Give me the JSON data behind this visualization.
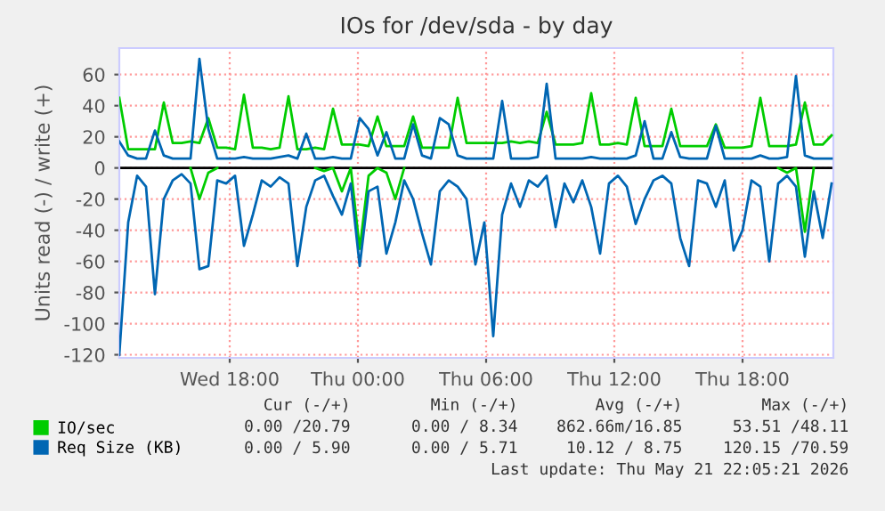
{
  "chart_data": {
    "type": "line",
    "title": "IOs for /dev/sda - by day",
    "ylabel": "Units read (-) / write (+)",
    "x": [
      "2026-05-20T12:50",
      "2026-05-20T13:15",
      "2026-05-20T13:40",
      "2026-05-20T14:05",
      "2026-05-20T14:30",
      "2026-05-20T14:55",
      "2026-05-20T15:20",
      "2026-05-20T15:45",
      "2026-05-20T16:10",
      "2026-05-20T16:35",
      "2026-05-20T17:00",
      "2026-05-20T17:25",
      "2026-05-20T17:50",
      "2026-05-20T18:15",
      "2026-05-20T18:40",
      "2026-05-20T19:05",
      "2026-05-20T19:30",
      "2026-05-20T19:55",
      "2026-05-20T20:20",
      "2026-05-20T20:45",
      "2026-05-20T21:10",
      "2026-05-20T21:35",
      "2026-05-20T22:00",
      "2026-05-20T22:25",
      "2026-05-20T22:50",
      "2026-05-20T23:15",
      "2026-05-20T23:40",
      "2026-05-21T00:05",
      "2026-05-21T00:30",
      "2026-05-21T00:55",
      "2026-05-21T01:20",
      "2026-05-21T01:45",
      "2026-05-21T02:10",
      "2026-05-21T02:35",
      "2026-05-21T03:00",
      "2026-05-21T03:25",
      "2026-05-21T03:50",
      "2026-05-21T04:15",
      "2026-05-21T04:40",
      "2026-05-21T05:05",
      "2026-05-21T05:30",
      "2026-05-21T05:55",
      "2026-05-21T06:20",
      "2026-05-21T06:45",
      "2026-05-21T07:10",
      "2026-05-21T07:35",
      "2026-05-21T08:00",
      "2026-05-21T08:25",
      "2026-05-21T08:50",
      "2026-05-21T09:15",
      "2026-05-21T09:40",
      "2026-05-21T10:05",
      "2026-05-21T10:30",
      "2026-05-21T10:55",
      "2026-05-21T11:20",
      "2026-05-21T11:45",
      "2026-05-21T12:10",
      "2026-05-21T12:35",
      "2026-05-21T13:00",
      "2026-05-21T13:25",
      "2026-05-21T13:50",
      "2026-05-21T14:15",
      "2026-05-21T14:40",
      "2026-05-21T15:05",
      "2026-05-21T15:30",
      "2026-05-21T15:55",
      "2026-05-21T16:20",
      "2026-05-21T16:45",
      "2026-05-21T17:10",
      "2026-05-21T17:35",
      "2026-05-21T18:00",
      "2026-05-21T18:25",
      "2026-05-21T18:50",
      "2026-05-21T19:15",
      "2026-05-21T19:40",
      "2026-05-21T20:05",
      "2026-05-21T20:30",
      "2026-05-21T20:55",
      "2026-05-21T21:20",
      "2026-05-21T21:45",
      "2026-05-21T22:10"
    ],
    "series": [
      {
        "name": "IO/sec",
        "color": "#00cc00",
        "values": [
          45,
          12,
          12,
          12,
          12,
          42,
          16,
          16,
          17,
          16,
          32,
          13,
          13,
          12,
          47,
          13,
          13,
          12,
          13,
          46,
          12,
          12,
          13,
          12,
          38,
          15,
          15,
          15,
          14,
          33,
          14,
          14,
          14,
          33,
          13,
          13,
          13,
          13,
          45,
          16,
          16,
          16,
          16,
          16,
          17,
          16,
          17,
          16,
          36,
          15,
          15,
          15,
          16,
          48,
          15,
          15,
          16,
          15,
          45,
          14,
          14,
          14,
          38,
          14,
          14,
          14,
          14,
          28,
          13,
          13,
          13,
          14,
          45,
          14,
          14,
          14,
          15,
          42,
          15,
          15,
          21
        ]
      },
      {
        "color": "#00cc00",
        "values": [
          null,
          null,
          null,
          null,
          null,
          null,
          null,
          null,
          0,
          -20,
          -3,
          0,
          null,
          null,
          null,
          null,
          null,
          null,
          null,
          null,
          null,
          null,
          0,
          -2,
          0,
          -15,
          0,
          -52,
          -5,
          0,
          -3,
          -20,
          0,
          null,
          null,
          null,
          null,
          null,
          null,
          null,
          null,
          null,
          null,
          null,
          null,
          null,
          null,
          null,
          null,
          null,
          null,
          null,
          null,
          null,
          null,
          null,
          null,
          null,
          null,
          null,
          null,
          null,
          null,
          null,
          null,
          null,
          null,
          null,
          null,
          null,
          null,
          null,
          null,
          null,
          0,
          -3,
          0,
          -41,
          0,
          null,
          null
        ]
      },
      {
        "name": "Req Size (KB)",
        "color": "#0066b3",
        "values": [
          17,
          8,
          6,
          6,
          24,
          8,
          6,
          6,
          6,
          70,
          25,
          6,
          6,
          6,
          7,
          6,
          6,
          6,
          7,
          8,
          6,
          22,
          6,
          6,
          7,
          6,
          6,
          32,
          25,
          8,
          23,
          6,
          6,
          28,
          8,
          6,
          32,
          28,
          8,
          6,
          6,
          6,
          6,
          43,
          6,
          6,
          6,
          7,
          54,
          6,
          6,
          6,
          6,
          7,
          6,
          6,
          6,
          6,
          8,
          30,
          6,
          6,
          23,
          7,
          6,
          6,
          6,
          27,
          6,
          6,
          6,
          6,
          8,
          6,
          6,
          7,
          59,
          8,
          6,
          6,
          6
        ]
      },
      {
        "color": "#0066b3",
        "values": [
          -120,
          -35,
          -5,
          -12,
          -81,
          -20,
          -8,
          -4,
          -10,
          -65,
          -63,
          -8,
          -10,
          -5,
          -50,
          -30,
          -8,
          -12,
          -6,
          -10,
          -63,
          -25,
          -8,
          -5,
          -18,
          -30,
          -10,
          -63,
          -15,
          -12,
          -55,
          -35,
          -8,
          -20,
          -42,
          -62,
          -15,
          -8,
          -12,
          -20,
          -62,
          -35,
          -108,
          -30,
          -10,
          -25,
          -8,
          -12,
          -5,
          -38,
          -10,
          -22,
          -8,
          -25,
          -55,
          -10,
          -5,
          -12,
          -36,
          -20,
          -8,
          -5,
          -10,
          -45,
          -63,
          -8,
          -10,
          -25,
          -8,
          -53,
          -40,
          -8,
          -12,
          -60,
          -10,
          -5,
          -12,
          -57,
          -15,
          -45,
          -10
        ]
      }
    ],
    "xlim": [
      "2026-05-20T12:50",
      "2026-05-21T22:15"
    ],
    "xticks": [
      {
        "value": "2026-05-20T18:00",
        "label": "Wed 18:00"
      },
      {
        "value": "2026-05-21T00:00",
        "label": "Thu 00:00"
      },
      {
        "value": "2026-05-21T06:00",
        "label": "Thu 06:00"
      },
      {
        "value": "2026-05-21T12:00",
        "label": "Thu 12:00"
      },
      {
        "value": "2026-05-21T18:00",
        "label": "Thu 18:00"
      }
    ],
    "ylim": [
      -122,
      77
    ],
    "yticks": [
      -120,
      -100,
      -80,
      -60,
      -40,
      -20,
      0,
      20,
      40,
      60
    ],
    "ref_lines": [
      {
        "axis": "y",
        "value": 0,
        "color": "#000000"
      }
    ],
    "grid": true,
    "legend": "bottom left",
    "annotations": [
      "Cur (-/+)",
      "Min (-/+)",
      "Avg (-/+)",
      "Max (-/+)",
      "0.00 /20.79",
      "0.00 / 8.34",
      "862.66m/16.85",
      "53.51 /48.11",
      "0.00 / 5.90",
      "0.00 / 5.71",
      "10.12 / 8.75",
      "120.15 /70.59",
      "Last update: Thu May 21 22:05:21 2026"
    ]
  }
}
